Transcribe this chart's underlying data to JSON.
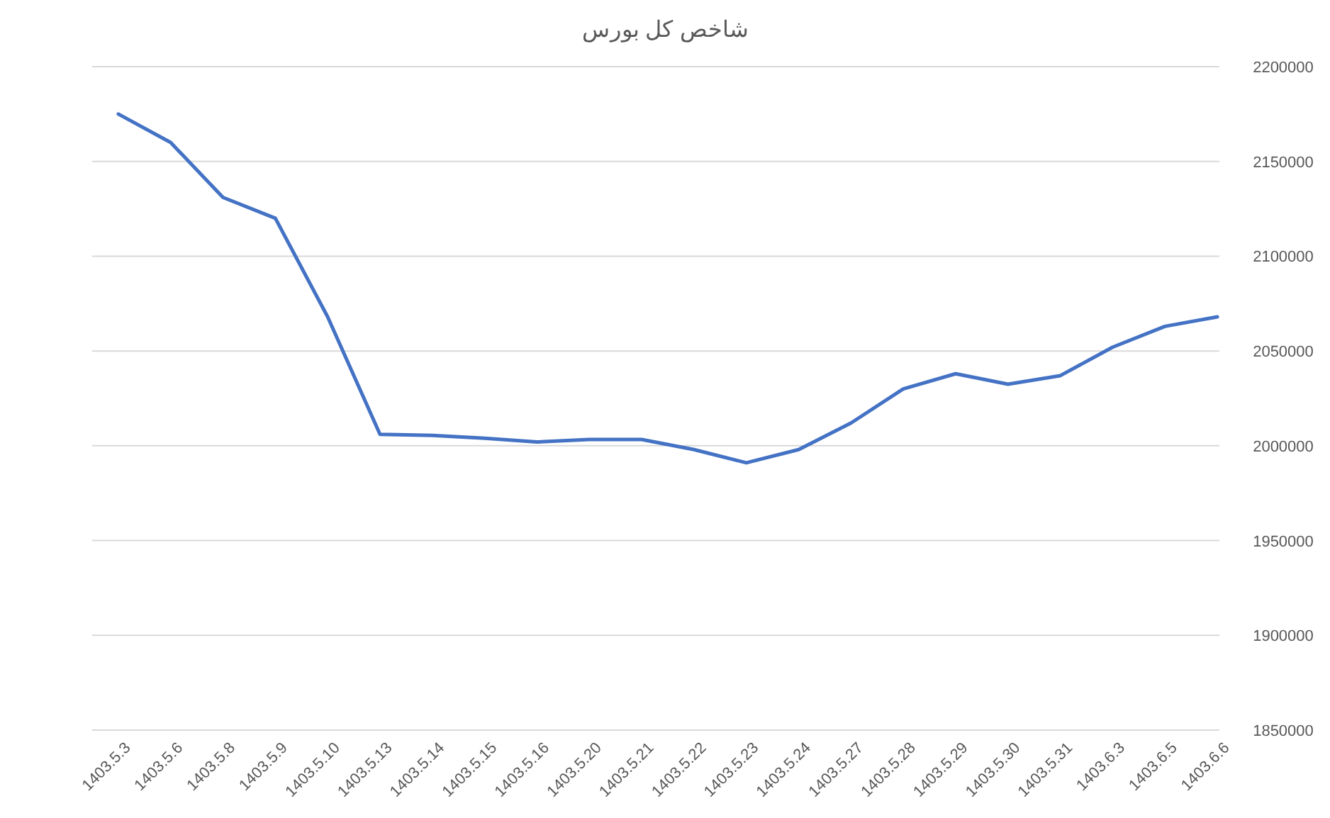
{
  "chart_data": {
    "type": "line",
    "title": "شاخص کل بورس",
    "categories": [
      "1403.5.3",
      "1403.5.6",
      "1403.5.8",
      "1403.5.9",
      "1403.5.10",
      "1403.5.13",
      "1403.5.14",
      "1403.5.15",
      "1403.5.16",
      "1403.5.20",
      "1403.5.21",
      "1403.5.22",
      "1403.5.23",
      "1403.5.24",
      "1403.5.27",
      "1403.5.28",
      "1403.5.29",
      "1403.5.30",
      "1403.5.31",
      "1403.6.3",
      "1403.6.5",
      "1403.6.6"
    ],
    "series": [
      {
        "color": "#4472c4",
        "values": [
          2175000,
          2160000,
          2131000,
          2120000,
          2068000,
          2006000,
          2005500,
          2004000,
          2002000,
          2003300,
          2003300,
          1998000,
          1991000,
          1998000,
          2012000,
          2030000,
          2038000,
          2032500,
          2037000,
          2052000,
          2063000,
          2068000
        ]
      }
    ],
    "ylim": [
      1850000,
      2200000
    ],
    "yticks": [
      1850000,
      1900000,
      1950000,
      2000000,
      2050000,
      2100000,
      2150000,
      2200000
    ],
    "grid": "y",
    "marker": "none",
    "line_style": "solid"
  }
}
